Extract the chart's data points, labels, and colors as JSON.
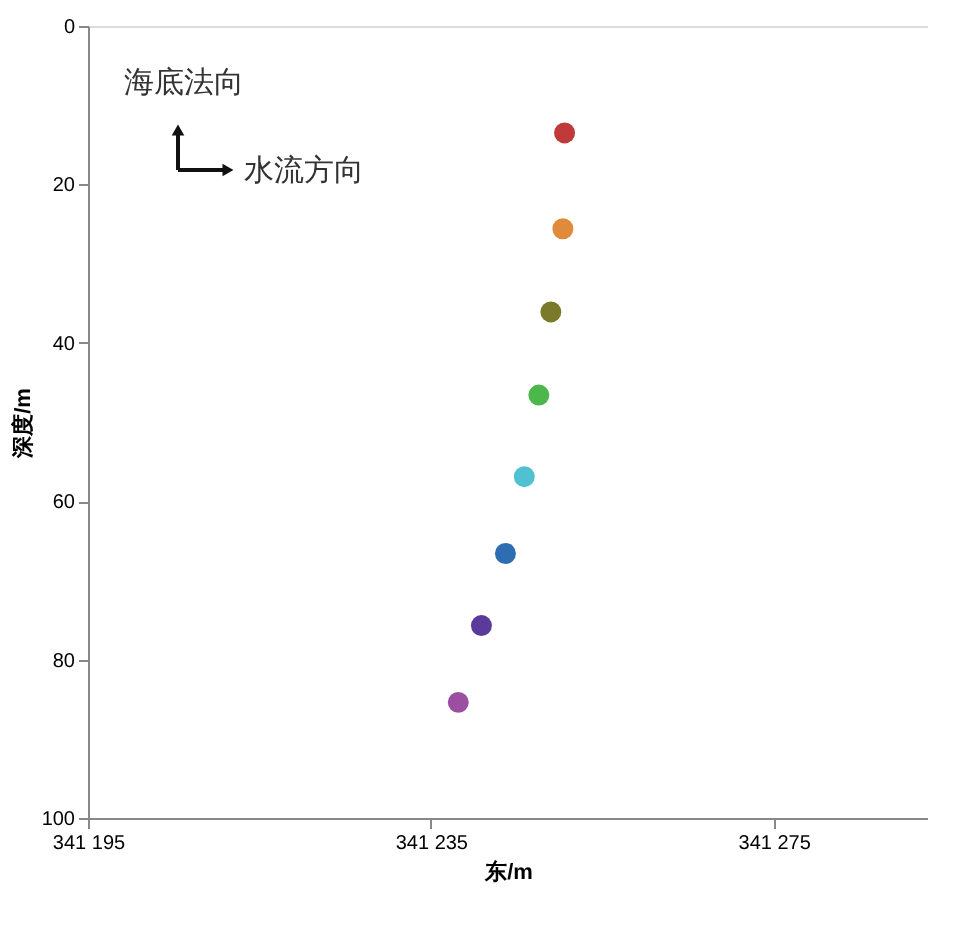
{
  "chart_data": {
    "type": "scatter",
    "xlabel": "东/m",
    "ylabel": "深度/m",
    "x": [
      341250.6,
      341250.4,
      341249.0,
      341247.6,
      341245.9,
      341243.7,
      341240.9,
      341238.2
    ],
    "values": [
      13.5,
      25.6,
      36.1,
      46.6,
      56.9,
      66.6,
      75.7,
      85.4
    ],
    "colors": [
      "#c03a3a",
      "#e08a3c",
      "#7a7a2a",
      "#4cb84c",
      "#4fc1d0",
      "#2f6db3",
      "#5a3a9a",
      "#9b4fa0"
    ],
    "xlim": [
      341195,
      341293
    ],
    "xticks": [
      {
        "value": 341195,
        "label": "341 195"
      },
      {
        "value": 341235,
        "label": "341 235"
      },
      {
        "value": 341275,
        "label": "341 275"
      }
    ],
    "ylim": [
      100,
      0
    ],
    "yticks": [
      0,
      20,
      40,
      60,
      80,
      100
    ],
    "marker": "circle",
    "grid": false,
    "legend": false,
    "annotations": [
      "海底法向",
      "水流方向"
    ]
  }
}
